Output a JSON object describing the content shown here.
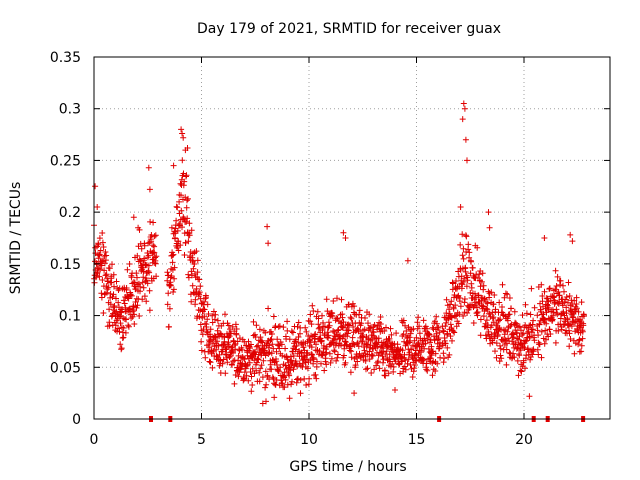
{
  "chart_data": {
    "type": "scatter",
    "title": "Day 179 of 2021, SRMTID for receiver guax",
    "xlabel": "GPS time / hours",
    "ylabel": "SRMTID / TECUs",
    "xlim": [
      0,
      24
    ],
    "ylim": [
      0,
      0.35
    ],
    "xticks": [
      0,
      5,
      10,
      15,
      20
    ],
    "xtick_labels": [
      "0",
      "5",
      "10",
      "15",
      "20"
    ],
    "yticks": [
      0,
      0.05,
      0.1,
      0.15,
      0.2,
      0.25,
      0.3,
      0.35
    ],
    "ytick_labels": [
      "0",
      "0.05",
      "0.1",
      "0.15",
      "0.2",
      "0.25",
      "0.3",
      "0.35"
    ],
    "grid": true,
    "marker": "+",
    "series_color": "#e00000",
    "envelope": {
      "x": [
        0.0,
        0.2,
        0.5,
        0.8,
        1.0,
        1.3,
        1.6,
        2.0,
        2.3,
        2.6,
        2.8,
        3.0,
        3.3,
        3.6,
        3.8,
        4.0,
        4.2,
        4.5,
        4.8,
        5.0,
        5.3,
        5.6,
        6.0,
        6.5,
        7.0,
        7.5,
        8.0,
        8.5,
        9.0,
        9.5,
        10.0,
        10.5,
        11.0,
        11.5,
        12.0,
        12.5,
        13.0,
        13.5,
        14.0,
        14.5,
        15.0,
        15.5,
        16.0,
        16.5,
        16.8,
        17.0,
        17.2,
        17.5,
        17.8,
        18.0,
        18.3,
        18.6,
        19.0,
        19.5,
        20.0,
        20.4,
        20.8,
        21.2,
        21.6,
        22.0,
        22.4,
        22.8
      ],
      "center": [
        0.145,
        0.155,
        0.14,
        0.115,
        0.105,
        0.1,
        0.11,
        0.13,
        0.14,
        0.15,
        0.16,
        0.13,
        0.11,
        0.14,
        0.17,
        0.2,
        0.21,
        0.16,
        0.12,
        0.1,
        0.085,
        0.075,
        0.07,
        0.065,
        0.06,
        0.06,
        0.065,
        0.06,
        0.055,
        0.06,
        0.07,
        0.075,
        0.08,
        0.085,
        0.08,
        0.075,
        0.07,
        0.065,
        0.06,
        0.065,
        0.07,
        0.07,
        0.075,
        0.09,
        0.11,
        0.125,
        0.14,
        0.13,
        0.12,
        0.115,
        0.1,
        0.095,
        0.09,
        0.08,
        0.07,
        0.085,
        0.1,
        0.105,
        0.11,
        0.1,
        0.095,
        0.085
      ],
      "spread": [
        0.04,
        0.04,
        0.035,
        0.035,
        0.035,
        0.035,
        0.035,
        0.04,
        0.04,
        0.04,
        0.04,
        0.035,
        0.035,
        0.045,
        0.05,
        0.05,
        0.05,
        0.045,
        0.04,
        0.035,
        0.03,
        0.03,
        0.03,
        0.03,
        0.03,
        0.03,
        0.035,
        0.035,
        0.035,
        0.035,
        0.035,
        0.035,
        0.035,
        0.035,
        0.035,
        0.03,
        0.03,
        0.03,
        0.025,
        0.03,
        0.03,
        0.03,
        0.03,
        0.035,
        0.04,
        0.04,
        0.045,
        0.04,
        0.04,
        0.04,
        0.035,
        0.035,
        0.035,
        0.03,
        0.03,
        0.035,
        0.035,
        0.035,
        0.035,
        0.035,
        0.03,
        0.03
      ]
    },
    "peaks": [
      {
        "x": 0.05,
        "y": 0.225
      },
      {
        "x": 0.15,
        "y": 0.205
      },
      {
        "x": 1.85,
        "y": 0.195
      },
      {
        "x": 2.05,
        "y": 0.185
      },
      {
        "x": 2.55,
        "y": 0.243
      },
      {
        "x": 2.6,
        "y": 0.222
      },
      {
        "x": 2.75,
        "y": 0.19
      },
      {
        "x": 3.7,
        "y": 0.245
      },
      {
        "x": 4.05,
        "y": 0.28
      },
      {
        "x": 4.1,
        "y": 0.276
      },
      {
        "x": 4.15,
        "y": 0.272
      },
      {
        "x": 4.25,
        "y": 0.26
      },
      {
        "x": 4.35,
        "y": 0.262
      },
      {
        "x": 8.05,
        "y": 0.186
      },
      {
        "x": 8.1,
        "y": 0.17
      },
      {
        "x": 11.6,
        "y": 0.18
      },
      {
        "x": 11.7,
        "y": 0.175
      },
      {
        "x": 14.6,
        "y": 0.153
      },
      {
        "x": 17.05,
        "y": 0.205
      },
      {
        "x": 17.15,
        "y": 0.29
      },
      {
        "x": 17.2,
        "y": 0.305
      },
      {
        "x": 17.25,
        "y": 0.3
      },
      {
        "x": 17.3,
        "y": 0.27
      },
      {
        "x": 17.35,
        "y": 0.25
      },
      {
        "x": 18.35,
        "y": 0.2
      },
      {
        "x": 18.4,
        "y": 0.185
      },
      {
        "x": 20.95,
        "y": 0.175
      },
      {
        "x": 22.15,
        "y": 0.178
      },
      {
        "x": 22.25,
        "y": 0.172
      }
    ],
    "lows": [
      {
        "x": 7.85,
        "y": 0.015
      },
      {
        "x": 8.0,
        "y": 0.017
      },
      {
        "x": 9.1,
        "y": 0.02
      },
      {
        "x": 12.1,
        "y": 0.025
      },
      {
        "x": 14.0,
        "y": 0.028
      },
      {
        "x": 20.25,
        "y": 0.022
      }
    ],
    "zero_markers": [
      2.65,
      3.55,
      16.05,
      20.45,
      21.1,
      22.75
    ],
    "gaps": [
      [
        2.9,
        3.4
      ],
      [
        16.1,
        16.2
      ],
      [
        20.5,
        20.6
      ]
    ]
  }
}
